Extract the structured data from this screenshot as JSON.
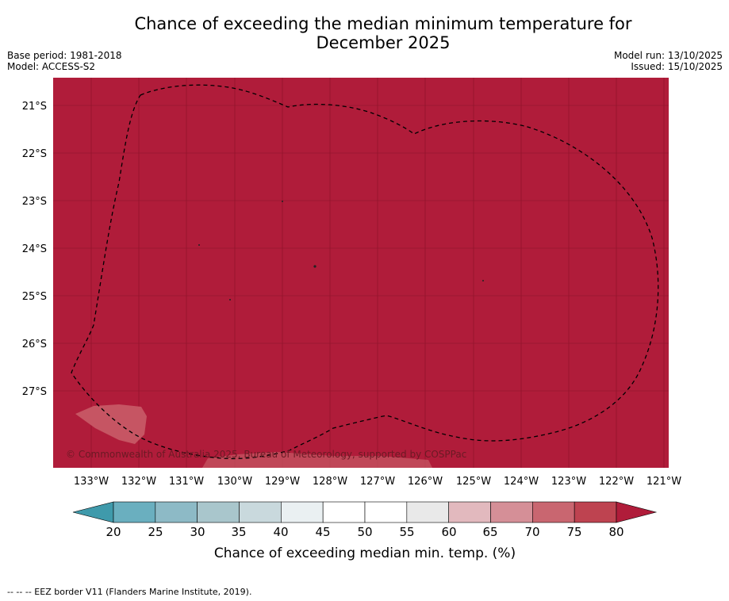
{
  "title_line1": "Chance of exceeding the median minimum temperature for",
  "title_line2": "December 2025",
  "base_period": "Base period: 1981-2018",
  "model": "Model: ACCESS-S2",
  "model_run": "Model run: 13/10/2025",
  "issued": "Issued: 15/10/2025",
  "copyright": "© Commonwealth of Australia 2025, Bureau of Meteorology, supported by COSPPac",
  "lat_labels": [
    "21°S",
    "22°S",
    "23°S",
    "24°S",
    "25°S",
    "26°S",
    "27°S"
  ],
  "lon_labels": [
    "133°W",
    "132°W",
    "131°W",
    "130°W",
    "129°W",
    "128°W",
    "127°W",
    "126°W",
    "125°W",
    "124°W",
    "123°W",
    "122°W",
    "121°W"
  ],
  "colorbar": {
    "ticks": [
      "20",
      "25",
      "30",
      "35",
      "40",
      "45",
      "50",
      "55",
      "60",
      "65",
      "70",
      "75",
      "80"
    ],
    "label": "Chance of exceeding median min. temp. (%)",
    "colors": [
      "#6aafbf",
      "#8dbac6",
      "#a9c6cc",
      "#c9d9dd",
      "#eaf0f2",
      "#ffffff",
      "#ffffff",
      "#e9e9e9",
      "#e2b9be",
      "#d58f97",
      "#c96670",
      "#be4350"
    ],
    "low_color": "#3f9aab",
    "high_color": "#b01c3a"
  },
  "map_colors": {
    "fill": "#b01c3a",
    "light_patch": "#c65563"
  },
  "footnote": "-- -- -- EEZ border V11 (Flanders Marine Institute, 2019)."
}
